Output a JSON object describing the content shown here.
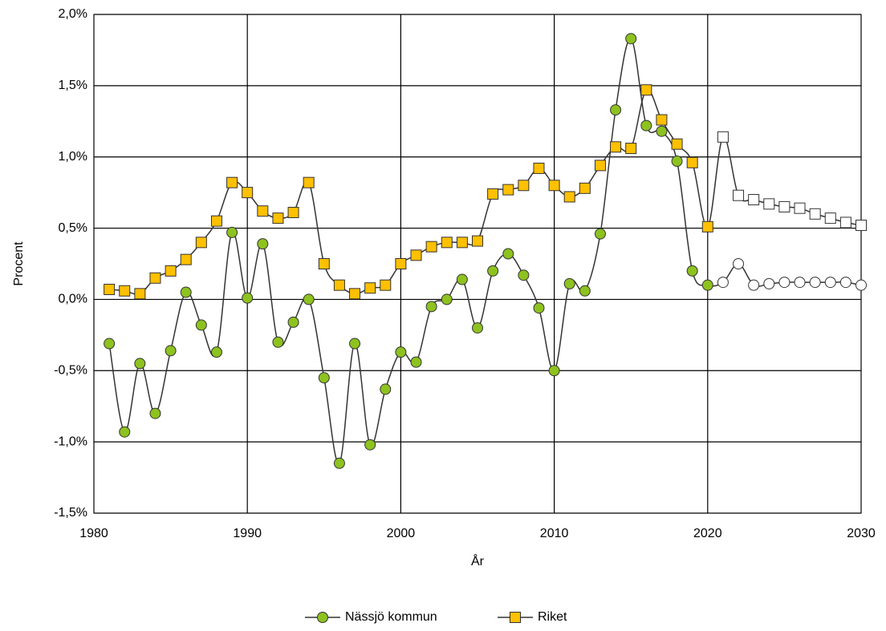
{
  "chart_data": {
    "type": "line",
    "x_label": "År",
    "y_label": "Procent",
    "x": [
      1981,
      1982,
      1983,
      1984,
      1985,
      1986,
      1987,
      1988,
      1989,
      1990,
      1991,
      1992,
      1993,
      1994,
      1995,
      1996,
      1997,
      1998,
      1999,
      2000,
      2001,
      2002,
      2003,
      2004,
      2005,
      2006,
      2007,
      2008,
      2009,
      2010,
      2011,
      2012,
      2013,
      2014,
      2015,
      2016,
      2017,
      2018,
      2019,
      2020,
      2021,
      2022,
      2023,
      2024,
      2025,
      2026,
      2027,
      2028,
      2029,
      2030
    ],
    "series": [
      {
        "name": "Nässjö kommun",
        "color": "#8dc21f",
        "marker": "circle",
        "values": [
          -0.31,
          -0.93,
          -0.45,
          -0.8,
          -0.36,
          0.05,
          -0.18,
          -0.37,
          0.47,
          0.01,
          0.39,
          -0.3,
          -0.16,
          0.0,
          -0.55,
          -1.15,
          -0.31,
          -1.02,
          -0.63,
          -0.37,
          -0.44,
          -0.05,
          0.0,
          0.14,
          -0.2,
          0.2,
          0.32,
          0.17,
          -0.06,
          -0.5,
          0.11,
          0.06,
          0.46,
          1.33,
          1.83,
          1.22,
          1.18,
          0.97,
          0.2,
          0.1,
          0.12,
          0.25,
          0.1,
          0.11,
          0.12,
          0.12,
          0.12,
          0.12,
          0.12,
          0.1
        ]
      },
      {
        "name": "Riket",
        "color": "#ffc000",
        "marker": "square",
        "values": [
          0.07,
          0.06,
          0.04,
          0.15,
          0.2,
          0.28,
          0.4,
          0.55,
          0.82,
          0.75,
          0.62,
          0.57,
          0.61,
          0.82,
          0.25,
          0.1,
          0.04,
          0.08,
          0.1,
          0.25,
          0.31,
          0.37,
          0.4,
          0.4,
          0.41,
          0.74,
          0.77,
          0.8,
          0.92,
          0.8,
          0.72,
          0.78,
          0.94,
          1.07,
          1.06,
          1.47,
          1.26,
          1.09,
          0.96,
          0.51,
          1.14,
          0.73,
          0.7,
          0.67,
          0.65,
          0.64,
          0.6,
          0.57,
          0.54,
          0.52
        ]
      }
    ],
    "forecast_from": 2021,
    "forecast_color": "#ffffff",
    "line_color": "#333333",
    "xlim": [
      1980,
      2030
    ],
    "xticks": [
      1980,
      1990,
      2000,
      2010,
      2020,
      2030
    ],
    "ylim": [
      -1.5,
      2.0
    ],
    "yticks": [
      {
        "value": -1.5,
        "label": "-1,5%"
      },
      {
        "value": -1.0,
        "label": "-1,0%"
      },
      {
        "value": -0.5,
        "label": "-0,5%"
      },
      {
        "value": 0.0,
        "label": "0,0%"
      },
      {
        "value": 0.5,
        "label": "0,5%"
      },
      {
        "value": 1.0,
        "label": "1,0%"
      },
      {
        "value": 1.5,
        "label": "1,5%"
      },
      {
        "value": 2.0,
        "label": "2,0%"
      }
    ],
    "grid": true,
    "legend": "bottom"
  }
}
